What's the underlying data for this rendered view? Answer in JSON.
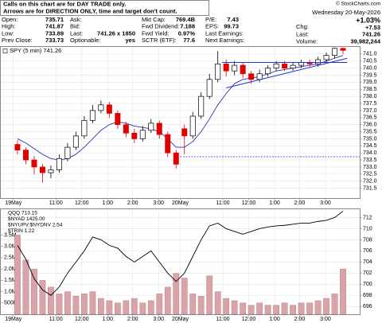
{
  "header": {
    "notice": [
      "Calls on this chart are for DAY TRADE only.",
      "Arrows are for DIRECTION ONLY, time and target don't count."
    ],
    "copyright": "© StockCharts.com",
    "date": "Wednesday 20-May-2026",
    "columns": [
      [
        [
          "Open:",
          "735.71"
        ],
        [
          "High:",
          "741.87"
        ],
        [
          "Low:",
          "733.89"
        ],
        [
          "Prev Close:",
          "733.73"
        ]
      ],
      [
        [
          "Ask:"
        ],
        [
          "Bid:"
        ],
        [
          "Last:",
          "741.26 x 1850"
        ],
        [
          "Optionable:",
          "yes"
        ]
      ],
      [
        [
          "Mkt Cap:",
          "769.4B"
        ],
        [
          "Fwd Dividend:",
          "7.188"
        ],
        [
          "Fwd Yield:",
          "0.97%"
        ],
        [
          "SCTR (ETF):",
          "77.6"
        ]
      ],
      [
        [
          "P/E:",
          "7.43"
        ],
        [
          "EPS:",
          "99.73"
        ],
        [
          "Last Earnings:"
        ],
        [
          "Next Earnings:"
        ]
      ]
    ],
    "chg_label": "Chg:",
    "change_pct": "+1.03%",
    "change": "+7.53",
    "last": [
      "Last:",
      "741.26"
    ],
    "volume": [
      "Volume:",
      "39,982,244"
    ]
  },
  "chart_data": [
    {
      "type": "candlestick",
      "legend": "SPY (5 min) 741.26",
      "up_color": "#000000",
      "down_color": "#e00000",
      "grid": true,
      "x": [
        0,
        1,
        2,
        3,
        4,
        5,
        6,
        7,
        8,
        9,
        10,
        11,
        12,
        13,
        14,
        15,
        16,
        17,
        18,
        19,
        20,
        21,
        22,
        23,
        24,
        25,
        26,
        27,
        28,
        29,
        30,
        31,
        32,
        33,
        34,
        35,
        36,
        37,
        38,
        39
      ],
      "open": [
        734.6,
        734.2,
        733.5,
        733.0,
        732.6,
        732.8,
        733.6,
        734.4,
        735.2,
        736.3,
        737.0,
        737.4,
        736.8,
        736.0,
        735.4,
        735.0,
        735.6,
        736.1,
        735.3,
        734.0,
        735.71,
        735.2,
        736.6,
        738.0,
        739.2,
        740.3,
        739.8,
        740.2,
        739.6,
        739.2,
        739.6,
        740.0,
        740.3,
        740.0,
        740.2,
        740.4,
        740.3,
        740.6,
        740.9,
        741.4
      ],
      "high": [
        734.9,
        734.4,
        733.8,
        733.2,
        733.1,
        733.9,
        734.7,
        735.5,
        736.6,
        737.4,
        737.7,
        737.6,
        737.0,
        736.2,
        735.7,
        735.9,
        736.4,
        736.3,
        735.5,
        734.2,
        736.0,
        736.9,
        738.3,
        739.6,
        741.2,
        740.6,
        740.5,
        740.4,
        739.8,
        739.9,
        740.2,
        740.5,
        740.5,
        740.4,
        740.6,
        740.6,
        740.8,
        741.1,
        741.45,
        741.45
      ],
      "low": [
        733.9,
        733.2,
        732.5,
        731.9,
        732.2,
        732.6,
        733.4,
        734.2,
        735.0,
        736.1,
        736.8,
        736.5,
        735.7,
        735.1,
        734.7,
        734.8,
        735.4,
        735.0,
        733.7,
        732.9,
        733.89,
        735.0,
        736.4,
        737.8,
        739.0,
        739.4,
        739.5,
        739.3,
        738.9,
        739.0,
        739.4,
        739.8,
        739.8,
        739.8,
        740.0,
        740.1,
        740.1,
        740.4,
        740.7,
        741.0
      ],
      "close": [
        734.2,
        733.5,
        733.0,
        732.6,
        732.8,
        733.6,
        734.4,
        735.2,
        736.3,
        737.0,
        737.4,
        736.8,
        736.0,
        735.4,
        735.0,
        735.6,
        736.1,
        735.3,
        734.0,
        733.2,
        735.2,
        736.6,
        738.0,
        739.2,
        740.3,
        739.8,
        740.2,
        739.6,
        739.2,
        739.6,
        740.0,
        740.3,
        740.0,
        740.2,
        740.4,
        740.3,
        740.6,
        740.9,
        741.4,
        741.26
      ],
      "ma": {
        "color": "#3030c0",
        "values": [
          735.0,
          734.7,
          734.3,
          733.9,
          733.6,
          733.5,
          733.6,
          733.9,
          734.4,
          735.0,
          735.6,
          736.0,
          736.2,
          736.1,
          735.9,
          735.8,
          735.7,
          735.5,
          735.0,
          734.4,
          734.4,
          734.8,
          735.5,
          736.4,
          737.4,
          738.2,
          738.9,
          739.2,
          739.3,
          739.4,
          739.6,
          739.8,
          739.9,
          740.0,
          740.1,
          740.2,
          740.3,
          740.5,
          740.7,
          740.9
        ]
      },
      "lines": [
        {
          "x": [
            25,
            39.5
          ],
          "y": [
            738.6,
            740.7
          ]
        },
        {
          "x": [
            24.5,
            39.5
          ],
          "y": [
            740.4,
            740.4
          ]
        }
      ],
      "reference_line": 733.73,
      "xlim": [
        -2,
        41
      ],
      "ylim": [
        730.8,
        741.5
      ],
      "xticks": [
        {
          "value": -0.5,
          "label": "19May"
        },
        {
          "value": 4.6,
          "label": "11:00"
        },
        {
          "value": 7.7,
          "label": "12:00"
        },
        {
          "value": 10.8,
          "label": "1:00"
        },
        {
          "value": 13.8,
          "label": "2:00"
        },
        {
          "value": 16.9,
          "label": "3:00"
        },
        {
          "value": 19.5,
          "label": "20May"
        },
        {
          "value": 24.6,
          "label": "11:00"
        },
        {
          "value": 27.7,
          "label": "12:00"
        },
        {
          "value": 30.8,
          "label": "1:00"
        },
        {
          "value": 33.8,
          "label": "2:00"
        },
        {
          "value": 36.9,
          "label": "3:00"
        }
      ],
      "yticks": [
        731.5,
        {
          "value": 732,
          "label": "732.0"
        },
        732.5,
        {
          "value": 733,
          "label": "733.0"
        },
        733.5,
        {
          "value": 734,
          "label": "734.0"
        },
        734.5,
        {
          "value": 735,
          "label": "735.0"
        },
        735.5,
        {
          "value": 736,
          "label": "736.0"
        },
        736.5,
        {
          "value": 737,
          "label": "737.0"
        },
        737.5,
        {
          "value": 738,
          "label": "738.0"
        },
        738.5,
        {
          "value": 739,
          "label": "739.0"
        },
        739.5,
        {
          "value": 740,
          "label": "740.0"
        },
        740.5,
        {
          "value": 741,
          "label": "741.0"
        }
      ]
    },
    {
      "type": "combo",
      "legend": [
        "QQQ 713.15",
        "$NYAD 1425.00",
        "$NYUPV:$NYDNV 2.54",
        "$TRIN 1.22"
      ],
      "grid": true,
      "x": [
        0,
        1,
        2,
        3,
        4,
        5,
        6,
        7,
        8,
        9,
        10,
        11,
        12,
        13,
        14,
        15,
        16,
        17,
        18,
        19,
        20,
        21,
        22,
        23,
        24,
        25,
        26,
        27,
        28,
        29,
        30,
        31,
        32,
        33,
        34,
        35,
        36,
        37,
        38,
        39
      ],
      "series": [
        {
          "name": "Volume",
          "type": "bar",
          "axis": "y2",
          "color": "#d9a3a8",
          "values": [
            3500000,
            2400000,
            2000000,
            1500000,
            1200000,
            900000,
            1000000,
            800000,
            900000,
            1000000,
            700000,
            600000,
            500000,
            600000,
            700000,
            500000,
            600000,
            900000,
            1200000,
            1800000,
            1600000,
            900000,
            800000,
            1700000,
            1000000,
            700000,
            600000,
            500000,
            400000,
            500000,
            400000,
            400000,
            500000,
            400000,
            500000,
            500000,
            600000,
            700000,
            900000,
            2000000
          ]
        },
        {
          "name": "QQQ",
          "type": "line",
          "color": "#000000",
          "values": [
            707,
            704.5,
            701,
            699,
            698,
            699.5,
            702,
            704,
            706,
            708.5,
            708,
            707,
            706.5,
            705,
            704,
            705,
            706,
            704,
            702,
            700.5,
            702,
            705,
            708,
            710.5,
            711,
            710,
            709.5,
            709,
            709.5,
            710,
            710.3,
            710.5,
            710.6,
            710.8,
            711,
            711,
            711.3,
            711.5,
            712,
            713.15
          ]
        }
      ],
      "xlim": [
        -2,
        41
      ],
      "ylim": [
        694.6,
        713.5
      ],
      "y2lim": [
        0,
        4640000
      ],
      "xticks": [
        {
          "value": -0.5,
          "label": "19May"
        },
        {
          "value": 4.6,
          "label": "11:00"
        },
        {
          "value": 7.7,
          "label": "12:00"
        },
        {
          "value": 10.8,
          "label": "1:00"
        },
        {
          "value": 13.8,
          "label": "2:00"
        },
        {
          "value": 16.9,
          "label": "3:00"
        },
        {
          "value": 19.5,
          "label": "20May"
        },
        {
          "value": 24.6,
          "label": "11:00"
        },
        {
          "value": 27.7,
          "label": "12:00"
        },
        {
          "value": 30.8,
          "label": "1:00"
        },
        {
          "value": 33.8,
          "label": "2:00"
        },
        {
          "value": 36.9,
          "label": "3:00"
        }
      ],
      "yticks": [
        696,
        698,
        700,
        702,
        704,
        706,
        708,
        710,
        712
      ],
      "y2ticks": [
        {
          "value": 500000,
          "label": "500K"
        },
        {
          "value": 1000000,
          "label": "1.0M"
        },
        {
          "value": 1500000,
          "label": "1.5M"
        },
        {
          "value": 2000000,
          "label": "2.0M"
        },
        {
          "value": 2500000,
          "label": "2.5M"
        },
        {
          "value": 3000000,
          "label": "3.0M"
        },
        {
          "value": 3500000,
          "label": "3.5M"
        }
      ]
    }
  ]
}
